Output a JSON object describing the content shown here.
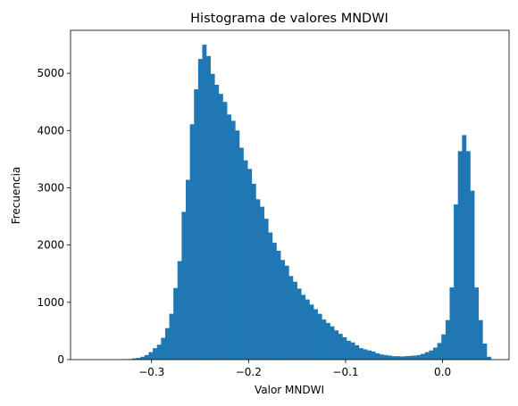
{
  "chart_data": {
    "type": "bar",
    "title": "Histograma de valores MNDWI",
    "xlabel": "Valor MNDWI",
    "ylabel": "Frecuencia",
    "xlim": [
      -0.3835,
      0.0685
    ],
    "ylim": [
      0,
      5750
    ],
    "grid": false,
    "legend": "none",
    "bar_color": "#1f77b4",
    "x_ticks": [
      -0.3,
      -0.2,
      -0.1,
      0.0
    ],
    "x_tick_labels": [
      "−0.3",
      "−0.2",
      "−0.1",
      "0.0"
    ],
    "y_ticks": [
      0,
      1000,
      2000,
      3000,
      4000,
      5000
    ],
    "y_tick_labels": [
      "0",
      "1000",
      "2000",
      "3000",
      "4000",
      "5000"
    ],
    "bin_start": -0.3625,
    "bin_width": 0.00425,
    "values": [
      0,
      0,
      0,
      0,
      0,
      0,
      0,
      0,
      5,
      10,
      20,
      30,
      50,
      80,
      130,
      200,
      260,
      380,
      550,
      800,
      1250,
      1720,
      2580,
      3140,
      4110,
      4720,
      5250,
      5500,
      5300,
      4990,
      4800,
      4640,
      4500,
      4280,
      4170,
      4000,
      3700,
      3480,
      3330,
      3070,
      2800,
      2670,
      2460,
      2220,
      2040,
      1900,
      1740,
      1640,
      1460,
      1360,
      1240,
      1130,
      1050,
      960,
      880,
      800,
      700,
      640,
      580,
      510,
      450,
      390,
      330,
      300,
      250,
      200,
      180,
      160,
      140,
      110,
      90,
      80,
      70,
      60,
      60,
      55,
      60,
      65,
      70,
      80,
      100,
      130,
      160,
      210,
      290,
      440,
      690,
      1260,
      2710,
      3640,
      3920,
      3640,
      2950,
      1260,
      690,
      280,
      50
    ]
  }
}
